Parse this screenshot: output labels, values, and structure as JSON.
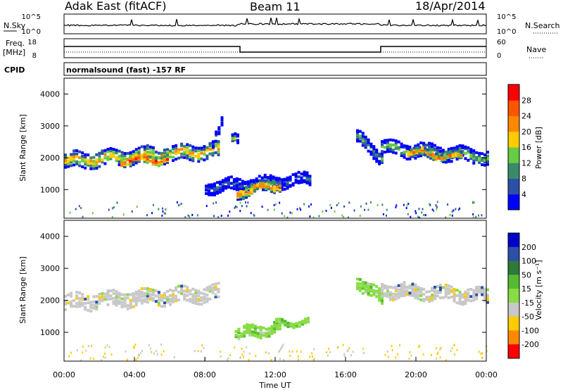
{
  "header": {
    "site": "Adak East (fitACF)",
    "beam": "Beam 11",
    "date": "18/Apr/2014"
  },
  "status_panels": {
    "nsky_label": "N.Sky",
    "nsky_ticks": [
      "10^5",
      "10^0"
    ],
    "nsearch_label": "N.Search",
    "nsearch_ticks": [
      "10^5",
      "10^0"
    ],
    "freq_label": "Freq.",
    "freq_unit": "[MHz]",
    "freq_ticks": [
      "18",
      "8"
    ],
    "nave_label": "Nave",
    "nave_ticks": [
      "60",
      "0"
    ],
    "cpid_label": "CPID",
    "cpid_text": "normalsound (fast) -157 RF"
  },
  "chart_data": [
    {
      "type": "heatmap",
      "name": "power",
      "ylabel": "Slant Range [km]",
      "yticks": [
        1000,
        2000,
        3000,
        4000
      ],
      "ylim": [
        100,
        4500
      ],
      "xlim": [
        0,
        24
      ],
      "colorbar": {
        "label": "Power [dB]",
        "ticks": [
          "4",
          "8",
          "12",
          "16",
          "20",
          "24",
          "28"
        ],
        "colors": [
          "#0000ff",
          "#2c4fa8",
          "#3a8a6a",
          "#66cc44",
          "#ffcc00",
          "#ff8800",
          "#ff5500",
          "#ff0000"
        ]
      },
      "regions": [
        {
          "t0": 0.0,
          "t1": 8.7,
          "r_start": 1870,
          "r_end": 2200,
          "band": 420,
          "level": 0.65
        },
        {
          "t0": 3.2,
          "t1": 5.8,
          "r_start": 1900,
          "r_end": 1950,
          "band": 220,
          "level": 0.9
        },
        {
          "t0": 8.4,
          "t1": 8.9,
          "r_start": 2400,
          "r_end": 3200,
          "band": 250,
          "level": 0.3
        },
        {
          "t0": 9.5,
          "t1": 9.8,
          "r_start": 2500,
          "r_end": 2500,
          "band": 250,
          "level": 0.5
        },
        {
          "t0": 8.0,
          "t1": 13.9,
          "r_start": 1050,
          "r_end": 1300,
          "band": 320,
          "level": 0.3
        },
        {
          "t0": 9.8,
          "t1": 12.2,
          "r_start": 900,
          "r_end": 1150,
          "band": 300,
          "level": 0.75
        },
        {
          "t0": 16.6,
          "t1": 18.0,
          "r_start": 2600,
          "r_end": 2000,
          "band": 350,
          "level": 0.45
        },
        {
          "t0": 18.0,
          "t1": 24.0,
          "r_start": 2300,
          "r_end": 2000,
          "band": 380,
          "level": 0.5
        },
        {
          "t0": 19.5,
          "t1": 22.5,
          "r_start": 2150,
          "r_end": 2000,
          "band": 200,
          "level": 0.8
        }
      ]
    },
    {
      "type": "heatmap",
      "name": "velocity",
      "ylabel": "Slant Range [km]",
      "xlabel": "Time UT",
      "xticks": [
        "00:00",
        "04:00",
        "08:00",
        "12:00",
        "16:00",
        "20:00",
        "00:00"
      ],
      "yticks": [
        1000,
        2000,
        3000,
        4000
      ],
      "ylim": [
        100,
        4500
      ],
      "xlim": [
        0,
        24
      ],
      "colorbar": {
        "label": "Velocity [m s⁻¹]",
        "ticks": [
          "200",
          "100",
          "50",
          "15",
          "-15",
          "-50",
          "-100",
          "-200"
        ],
        "colors": [
          "#0000cc",
          "#2c4fa8",
          "#2f7a3a",
          "#55bb33",
          "#88dd44",
          "#c8c8c8",
          "#ffcc00",
          "#ff8800",
          "#ff0000"
        ]
      },
      "regions": [
        {
          "t0": 0.0,
          "t1": 8.7,
          "r_start": 1900,
          "r_end": 2200,
          "band": 420,
          "color": "gray"
        },
        {
          "t0": 9.7,
          "t1": 12.2,
          "r_start": 900,
          "r_end": 1150,
          "band": 300,
          "color": "green"
        },
        {
          "t0": 12.0,
          "t1": 13.8,
          "r_start": 1250,
          "r_end": 1300,
          "band": 120,
          "color": "green"
        },
        {
          "t0": 16.6,
          "t1": 18.0,
          "r_start": 2600,
          "r_end": 2000,
          "band": 350,
          "color": "green"
        },
        {
          "t0": 18.0,
          "t1": 24.0,
          "r_start": 2300,
          "r_end": 2100,
          "band": 380,
          "color": "gray"
        }
      ]
    }
  ]
}
